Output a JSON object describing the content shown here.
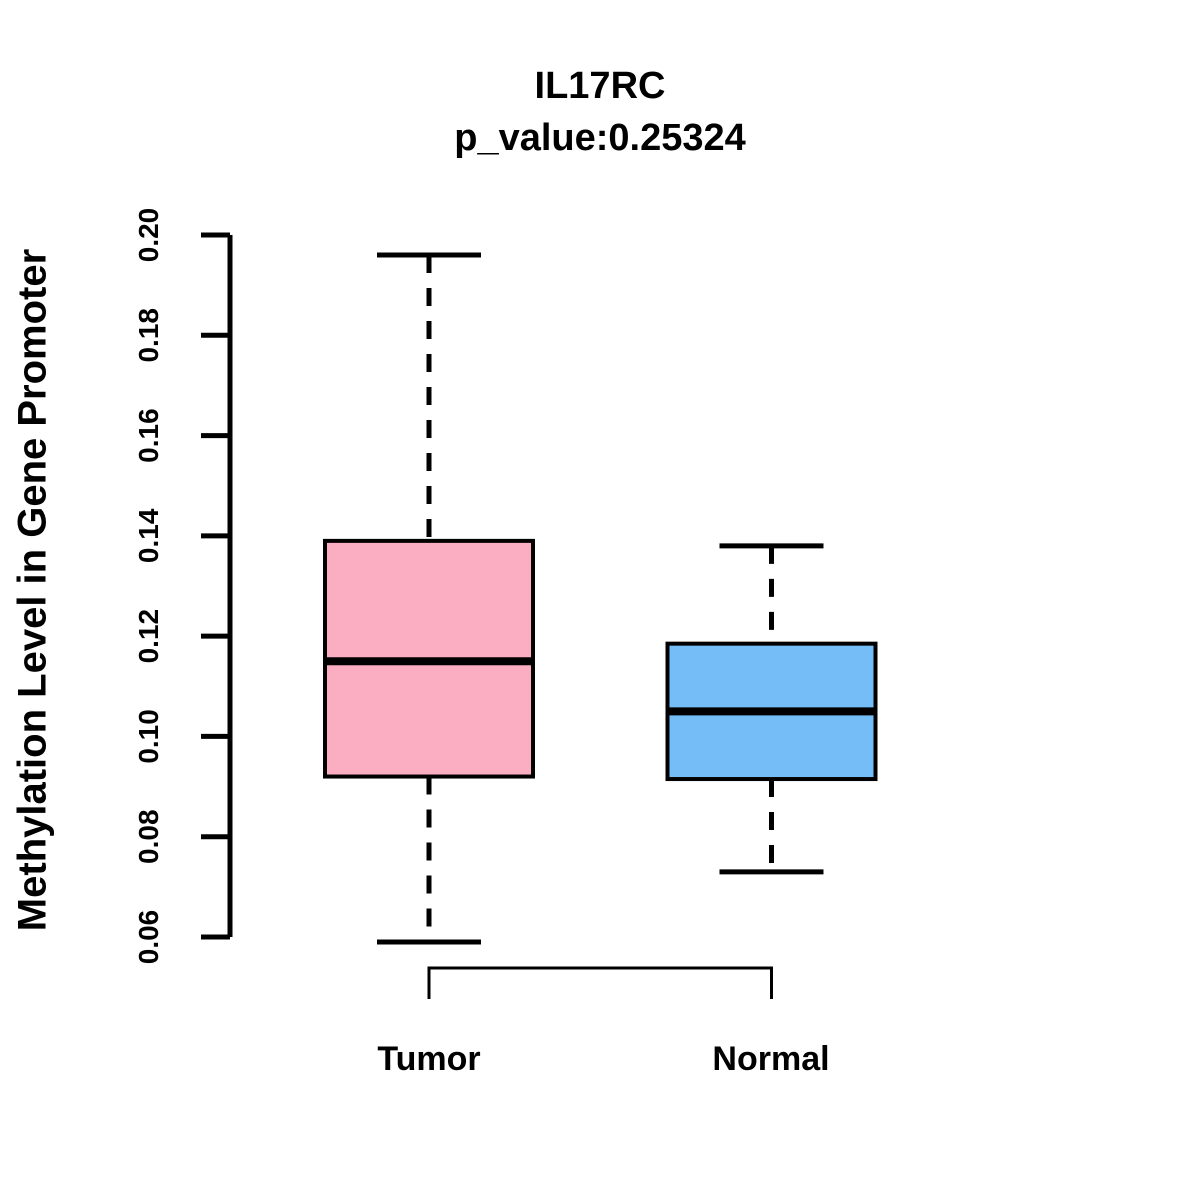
{
  "chart_data": {
    "type": "boxplot",
    "title": "IL17RC",
    "subtitle": "p_value:0.25324",
    "ylabel": "Methylation Level in Gene Promoter",
    "xlabel": "",
    "ylim": [
      0.06,
      0.2
    ],
    "ytick_labels": [
      "0.06",
      "0.08",
      "0.10",
      "0.12",
      "0.14",
      "0.16",
      "0.18",
      "0.20"
    ],
    "ytick_values": [
      0.06,
      0.08,
      0.1,
      0.12,
      0.14,
      0.16,
      0.18,
      0.2
    ],
    "grid": "off",
    "categories": [
      "Tumor",
      "Normal"
    ],
    "series": [
      {
        "name": "Tumor",
        "fill_color": "#FBAEC2",
        "lower_whisker": 0.059,
        "q1": 0.092,
        "median": 0.115,
        "q3": 0.139,
        "upper_whisker": 0.196
      },
      {
        "name": "Normal",
        "fill_color": "#74BDF7",
        "lower_whisker": 0.073,
        "q1": 0.0915,
        "median": 0.105,
        "q3": 0.1185,
        "upper_whisker": 0.138
      }
    ],
    "line_color": "#000000",
    "background_color": "#FFFFFF"
  }
}
